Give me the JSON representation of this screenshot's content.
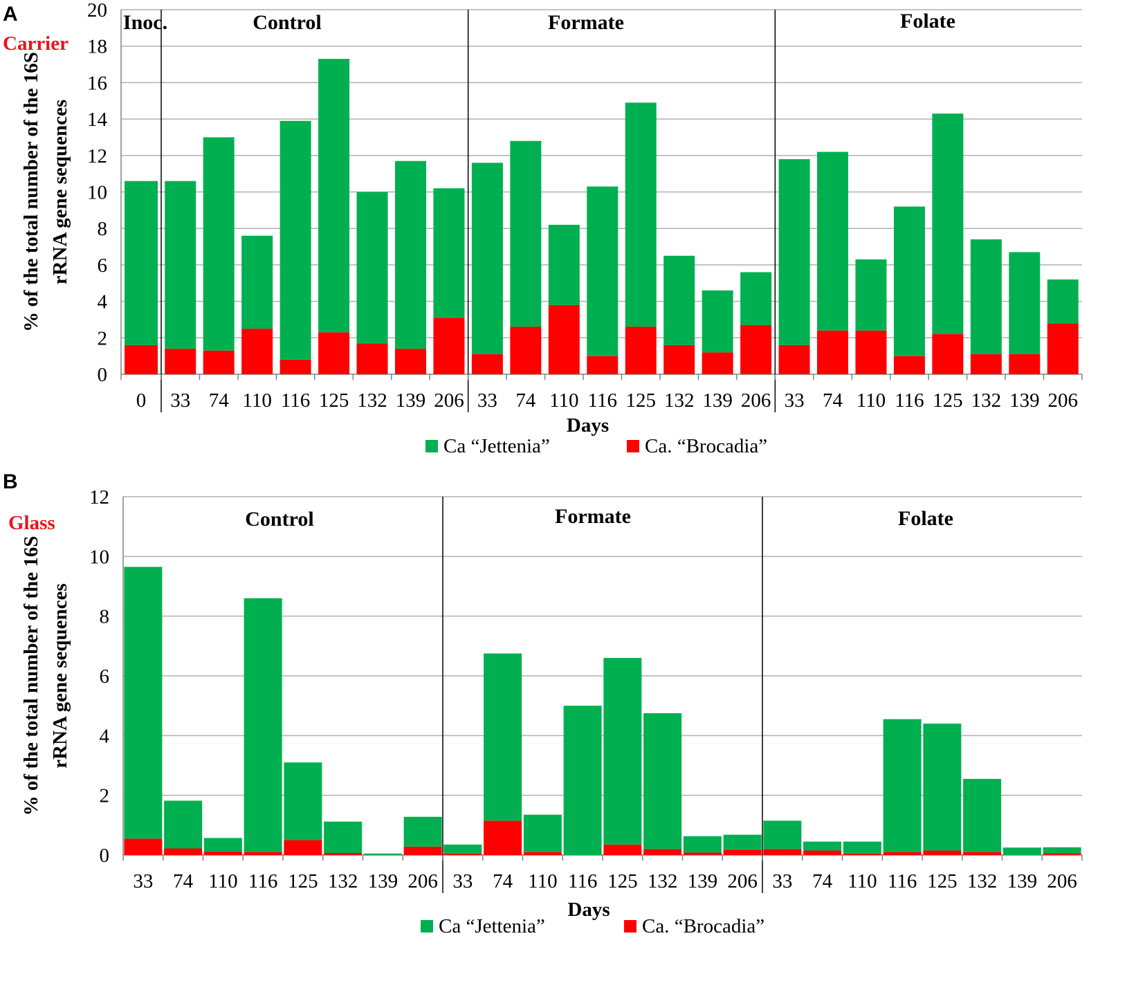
{
  "colors": {
    "jettenia": "#00b050",
    "brocadia": "#ff0000",
    "grid": "#b0b0b0",
    "axis": "#808080",
    "separator": "#000000"
  },
  "chart_data": [
    {
      "panel": "A",
      "material": "Carrier",
      "type": "bar",
      "stacked": true,
      "ylim": [
        0,
        20
      ],
      "yticks": [
        0,
        2,
        4,
        6,
        8,
        10,
        12,
        14,
        16,
        18,
        20
      ],
      "ylabel_line1": "% of the total number of the 16S",
      "ylabel_line2": "rRNA gene sequences",
      "xlabel": "Days",
      "groups": [
        {
          "name": "Inoc.",
          "days": [
            "0"
          ]
        },
        {
          "name": "Control",
          "days": [
            "33",
            "74",
            "110",
            "116",
            "125",
            "132",
            "139",
            "206"
          ]
        },
        {
          "name": "Formate",
          "days": [
            "33",
            "74",
            "110",
            "116",
            "125",
            "132",
            "139",
            "206"
          ]
        },
        {
          "name": "Folate",
          "days": [
            "33",
            "74",
            "110",
            "116",
            "125",
            "132",
            "139",
            "206"
          ]
        }
      ],
      "series": [
        {
          "name": "Ca “Jettenia”",
          "color": "#00b050",
          "values": [
            9.0,
            9.2,
            11.7,
            5.1,
            13.1,
            15.0,
            8.3,
            10.3,
            7.1,
            10.5,
            10.2,
            4.4,
            9.3,
            12.3,
            4.9,
            3.4,
            2.9,
            10.2,
            9.8,
            3.9,
            8.2,
            12.1,
            6.3,
            5.6,
            2.4
          ]
        },
        {
          "name": "Ca. “Brocadia”",
          "color": "#ff0000",
          "values": [
            1.6,
            1.4,
            1.3,
            2.5,
            0.8,
            2.3,
            1.7,
            1.4,
            3.1,
            1.1,
            2.6,
            3.8,
            1.0,
            2.6,
            1.6,
            1.2,
            2.7,
            1.6,
            2.4,
            2.4,
            1.0,
            2.2,
            1.1,
            1.1,
            2.8
          ]
        }
      ],
      "legend": [
        "Ca “Jettenia”",
        "Ca. “Brocadia”"
      ]
    },
    {
      "panel": "B",
      "material": "Glass",
      "type": "bar",
      "stacked": true,
      "ylim": [
        0,
        12
      ],
      "yticks": [
        0,
        2,
        4,
        6,
        8,
        10,
        12
      ],
      "ylabel_line1": "% of the total number of the 16S",
      "ylabel_line2": "rRNA gene sequences",
      "xlabel": "Days",
      "groups": [
        {
          "name": "Control",
          "days": [
            "33",
            "74",
            "110",
            "116",
            "125",
            "132",
            "139",
            "206"
          ]
        },
        {
          "name": "Formate",
          "days": [
            "33",
            "74",
            "110",
            "116",
            "125",
            "132",
            "139",
            "206"
          ]
        },
        {
          "name": "Folate",
          "days": [
            "33",
            "74",
            "110",
            "116",
            "125",
            "132",
            "139",
            "206"
          ]
        }
      ],
      "series": [
        {
          "name": "Ca “Jettenia”",
          "color": "#00b050",
          "values": [
            9.1,
            1.6,
            0.45,
            8.5,
            2.6,
            1.05,
            0.05,
            1.0,
            0.3,
            5.6,
            1.25,
            5.0,
            6.25,
            4.55,
            0.55,
            0.5,
            0.95,
            0.3,
            0.4,
            4.45,
            4.25,
            2.45,
            0.25,
            0.2
          ]
        },
        {
          "name": "Ca. “Brocadia”",
          "color": "#ff0000",
          "values": [
            0.55,
            0.22,
            0.12,
            0.1,
            0.5,
            0.07,
            0.0,
            0.28,
            0.05,
            1.15,
            0.1,
            0.0,
            0.35,
            0.2,
            0.08,
            0.18,
            0.2,
            0.15,
            0.05,
            0.1,
            0.15,
            0.1,
            0.0,
            0.06
          ]
        }
      ],
      "legend": [
        "Ca “Jettenia”",
        "Ca. “Brocadia”"
      ]
    }
  ]
}
